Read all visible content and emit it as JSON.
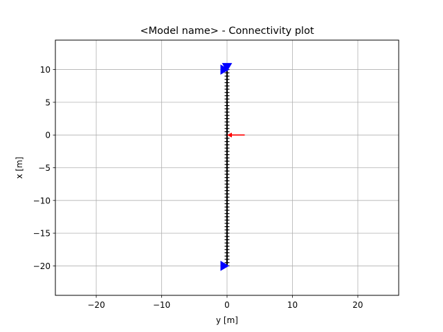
{
  "chart_data": {
    "type": "scatter",
    "title": "<Model name> - Connectivity plot",
    "xlabel": "y [m]",
    "ylabel": "x [m]",
    "xlim": [
      -26.25,
      26.25
    ],
    "ylim": [
      -24.5,
      14.5
    ],
    "xticks": [
      -20,
      -10,
      0,
      10,
      20
    ],
    "xtick_labels": [
      "−20",
      "−10",
      "0",
      "10",
      "20"
    ],
    "yticks": [
      10,
      5,
      0,
      -5,
      -10,
      -15,
      -20
    ],
    "ytick_labels": [
      "10",
      "5",
      "0",
      "−5",
      "−10",
      "−15",
      "−20"
    ],
    "grid": true,
    "element_line": {
      "x": [
        0,
        0
      ],
      "y": [
        -20,
        10
      ],
      "color": "#000000"
    },
    "node_markers": {
      "x": 0,
      "y_start": -20,
      "y_end": 10,
      "count": 61,
      "marker": "+",
      "color": "#000000"
    },
    "supports": [
      {
        "x": 0,
        "y": 10,
        "markers": [
          "triangle-right",
          "triangle-down"
        ],
        "color": "#0000ff"
      },
      {
        "x": 0,
        "y": -20,
        "markers": [
          "triangle-right"
        ],
        "color": "#0000ff"
      }
    ],
    "loads": [
      {
        "x_tail": 2.7,
        "x_head": 0,
        "y": 0,
        "color": "#ff0000"
      }
    ],
    "colors": {
      "grid": "#b0b0b0",
      "axes": "#000000",
      "element": "#000000",
      "support": "#0000ff",
      "load": "#ff0000"
    }
  }
}
